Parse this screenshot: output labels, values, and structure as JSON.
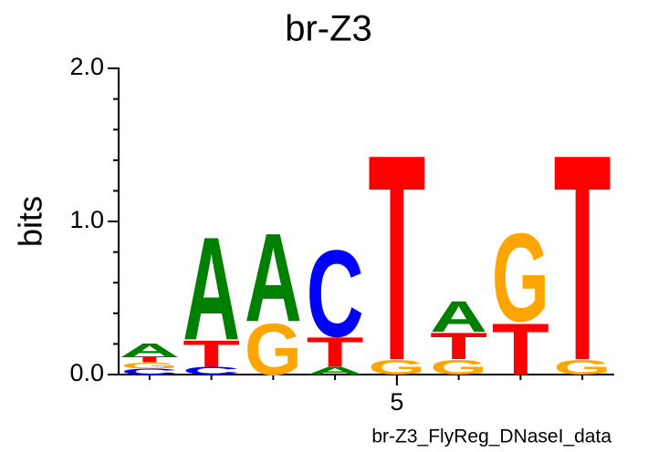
{
  "chart_data": {
    "type": "logo",
    "title": "br-Z3",
    "y_label": "bits",
    "footer": "br-Z3_FlyReg_DNaseI_data",
    "x": [
      1,
      2,
      3,
      4,
      5,
      6,
      7,
      8
    ],
    "xlim": [
      0.5,
      8.5
    ],
    "xticks": [
      5
    ],
    "ylim": [
      0,
      2
    ],
    "yticks": [
      {
        "value": 0,
        "label": "0.0"
      },
      {
        "value": 1,
        "label": "1.0"
      },
      {
        "value": 2,
        "label": "2.0"
      }
    ],
    "minor_yticks": [
      0.2,
      0.4,
      0.6,
      0.8,
      1.2,
      1.4,
      1.6,
      1.8
    ],
    "series": [
      {
        "name": "A",
        "color": "#008000",
        "values": [
          0.09,
          0.7,
          0.6,
          0.05,
          0,
          0.21,
          0,
          0
        ]
      },
      {
        "name": "C",
        "color": "#0000ff",
        "values": [
          0.04,
          0.05,
          0,
          0.59,
          0,
          0,
          0,
          0
        ]
      },
      {
        "name": "G",
        "color": "#ffa500",
        "values": [
          0.04,
          0,
          0.35,
          0,
          0.1,
          0.1,
          0.6,
          0.1
        ]
      },
      {
        "name": "T",
        "color": "#ff0000",
        "values": [
          0.04,
          0.18,
          0,
          0.2,
          1.4,
          0.18,
          0.35,
          1.4
        ]
      }
    ]
  }
}
